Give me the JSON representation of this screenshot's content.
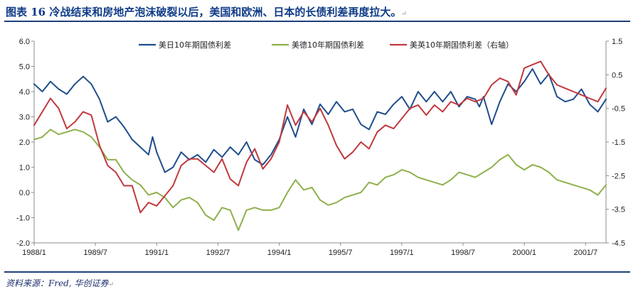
{
  "title": "图表 16 冷战结束和房地产泡沫破裂以后，美国和欧洲、日本的长债利差再度拉大。",
  "source": "资料来源：Fred, 华创证券",
  "chart_data": {
    "type": "line",
    "title": "图表 16 冷战结束和房地产泡沫破裂以后，美国和欧洲、日本的长债利差再度拉大。",
    "x_tick_labels": [
      "1988/1",
      "1989/7",
      "1991/1",
      "1992/7",
      "1994/1",
      "1995/7",
      "1997/1",
      "1998/7",
      "2000/1",
      "2001/7"
    ],
    "y_left": {
      "min": -2.0,
      "max": 6.0,
      "ticks": [
        "-2.0",
        "-1.0",
        "0.0",
        "1.0",
        "2.0",
        "3.0",
        "4.0",
        "5.0",
        "6.0"
      ]
    },
    "y_right": {
      "min": -4.5,
      "max": 1.5,
      "ticks": [
        "-4.5",
        "-3.5",
        "-2.5",
        "-1.5",
        "-0.5",
        "0.5",
        "1.5"
      ]
    },
    "grid": false,
    "legend_position": "top",
    "series": [
      {
        "name": "美日10年期国债利差",
        "axis": "left",
        "color": "#1f4e8c",
        "points": [
          [
            1988.0,
            4.3
          ],
          [
            1988.2,
            4.0
          ],
          [
            1988.4,
            4.4
          ],
          [
            1988.6,
            4.1
          ],
          [
            1988.8,
            3.9
          ],
          [
            1989.0,
            4.3
          ],
          [
            1989.2,
            4.6
          ],
          [
            1989.4,
            4.3
          ],
          [
            1989.6,
            3.7
          ],
          [
            1989.8,
            2.8
          ],
          [
            1990.0,
            3.0
          ],
          [
            1990.2,
            2.6
          ],
          [
            1990.4,
            2.1
          ],
          [
            1990.6,
            1.8
          ],
          [
            1990.8,
            1.5
          ],
          [
            1990.9,
            2.2
          ],
          [
            1991.0,
            1.6
          ],
          [
            1991.2,
            0.8
          ],
          [
            1991.4,
            1.0
          ],
          [
            1991.6,
            1.6
          ],
          [
            1991.8,
            1.3
          ],
          [
            1992.0,
            1.5
          ],
          [
            1992.2,
            1.2
          ],
          [
            1992.4,
            1.7
          ],
          [
            1992.6,
            1.4
          ],
          [
            1992.8,
            1.8
          ],
          [
            1993.0,
            1.5
          ],
          [
            1993.2,
            2.0
          ],
          [
            1993.4,
            1.3
          ],
          [
            1993.6,
            1.1
          ],
          [
            1993.8,
            1.5
          ],
          [
            1994.0,
            2.1
          ],
          [
            1994.2,
            3.0
          ],
          [
            1994.4,
            2.2
          ],
          [
            1994.6,
            3.3
          ],
          [
            1994.8,
            2.7
          ],
          [
            1995.0,
            3.5
          ],
          [
            1995.2,
            3.1
          ],
          [
            1995.4,
            3.6
          ],
          [
            1995.6,
            3.2
          ],
          [
            1995.8,
            3.3
          ],
          [
            1996.0,
            2.7
          ],
          [
            1996.2,
            2.5
          ],
          [
            1996.4,
            3.2
          ],
          [
            1996.6,
            3.1
          ],
          [
            1996.8,
            3.5
          ],
          [
            1997.0,
            3.8
          ],
          [
            1997.2,
            3.3
          ],
          [
            1997.4,
            4.0
          ],
          [
            1997.6,
            3.6
          ],
          [
            1997.8,
            4.0
          ],
          [
            1998.0,
            3.6
          ],
          [
            1998.2,
            4.0
          ],
          [
            1998.4,
            3.4
          ],
          [
            1998.6,
            3.8
          ],
          [
            1998.8,
            3.7
          ],
          [
            1998.9,
            3.4
          ],
          [
            1999.0,
            3.8
          ],
          [
            1999.2,
            2.7
          ],
          [
            1999.4,
            3.6
          ],
          [
            1999.6,
            4.3
          ],
          [
            1999.8,
            4.0
          ],
          [
            2000.0,
            4.4
          ],
          [
            2000.2,
            4.9
          ],
          [
            2000.4,
            4.3
          ],
          [
            2000.6,
            4.7
          ],
          [
            2000.8,
            3.8
          ],
          [
            2001.0,
            3.6
          ],
          [
            2001.2,
            3.7
          ],
          [
            2001.4,
            4.1
          ],
          [
            2001.6,
            3.5
          ],
          [
            2001.8,
            3.2
          ],
          [
            2002.0,
            3.7
          ]
        ]
      },
      {
        "name": "美德10年期国债利差",
        "axis": "left",
        "color": "#8fb04c",
        "points": [
          [
            1988.0,
            2.1
          ],
          [
            1988.2,
            2.2
          ],
          [
            1988.4,
            2.5
          ],
          [
            1988.6,
            2.3
          ],
          [
            1988.8,
            2.4
          ],
          [
            1989.0,
            2.5
          ],
          [
            1989.2,
            2.4
          ],
          [
            1989.4,
            2.2
          ],
          [
            1989.6,
            1.8
          ],
          [
            1989.8,
            1.3
          ],
          [
            1990.0,
            1.3
          ],
          [
            1990.2,
            0.8
          ],
          [
            1990.4,
            0.5
          ],
          [
            1990.6,
            0.3
          ],
          [
            1990.8,
            -0.1
          ],
          [
            1991.0,
            0.0
          ],
          [
            1991.2,
            -0.2
          ],
          [
            1991.4,
            -0.6
          ],
          [
            1991.6,
            -0.3
          ],
          [
            1991.8,
            -0.2
          ],
          [
            1992.0,
            -0.4
          ],
          [
            1992.2,
            -0.9
          ],
          [
            1992.4,
            -1.1
          ],
          [
            1992.6,
            -0.6
          ],
          [
            1992.8,
            -0.7
          ],
          [
            1993.0,
            -1.5
          ],
          [
            1993.2,
            -0.7
          ],
          [
            1993.4,
            -0.6
          ],
          [
            1993.6,
            -0.7
          ],
          [
            1993.8,
            -0.7
          ],
          [
            1994.0,
            -0.6
          ],
          [
            1994.2,
            0.0
          ],
          [
            1994.4,
            0.5
          ],
          [
            1994.6,
            0.1
          ],
          [
            1994.8,
            0.2
          ],
          [
            1995.0,
            -0.3
          ],
          [
            1995.2,
            -0.5
          ],
          [
            1995.4,
            -0.4
          ],
          [
            1995.6,
            -0.2
          ],
          [
            1995.8,
            -0.1
          ],
          [
            1996.0,
            0.0
          ],
          [
            1996.2,
            0.4
          ],
          [
            1996.4,
            0.3
          ],
          [
            1996.6,
            0.6
          ],
          [
            1996.8,
            0.7
          ],
          [
            1997.0,
            0.9
          ],
          [
            1997.2,
            0.8
          ],
          [
            1997.4,
            0.6
          ],
          [
            1997.6,
            0.5
          ],
          [
            1997.8,
            0.4
          ],
          [
            1998.0,
            0.3
          ],
          [
            1998.2,
            0.5
          ],
          [
            1998.4,
            0.8
          ],
          [
            1998.6,
            0.7
          ],
          [
            1998.8,
            0.6
          ],
          [
            1999.0,
            0.8
          ],
          [
            1999.2,
            1.0
          ],
          [
            1999.4,
            1.3
          ],
          [
            1999.6,
            1.5
          ],
          [
            1999.8,
            1.1
          ],
          [
            2000.0,
            0.9
          ],
          [
            2000.2,
            1.1
          ],
          [
            2000.4,
            1.0
          ],
          [
            2000.6,
            0.8
          ],
          [
            2000.8,
            0.5
          ],
          [
            2001.0,
            0.4
          ],
          [
            2001.2,
            0.3
          ],
          [
            2001.4,
            0.2
          ],
          [
            2001.6,
            0.1
          ],
          [
            2001.8,
            -0.1
          ],
          [
            2002.0,
            0.3
          ]
        ]
      },
      {
        "name": "美英10年期国债利差（右轴）",
        "axis": "right",
        "color": "#c0393e",
        "points": [
          [
            1988.0,
            -1.0
          ],
          [
            1988.2,
            -0.6
          ],
          [
            1988.4,
            -0.2
          ],
          [
            1988.6,
            -0.5
          ],
          [
            1988.8,
            -1.1
          ],
          [
            1989.0,
            -0.9
          ],
          [
            1989.2,
            -0.6
          ],
          [
            1989.4,
            -0.7
          ],
          [
            1989.6,
            -1.6
          ],
          [
            1989.8,
            -2.2
          ],
          [
            1990.0,
            -2.4
          ],
          [
            1990.2,
            -2.8
          ],
          [
            1990.4,
            -2.8
          ],
          [
            1990.6,
            -3.6
          ],
          [
            1990.8,
            -3.3
          ],
          [
            1991.0,
            -3.4
          ],
          [
            1991.2,
            -3.1
          ],
          [
            1991.4,
            -2.8
          ],
          [
            1991.6,
            -2.2
          ],
          [
            1991.8,
            -2.0
          ],
          [
            1992.0,
            -2.0
          ],
          [
            1992.2,
            -2.2
          ],
          [
            1992.4,
            -2.4
          ],
          [
            1992.6,
            -2.0
          ],
          [
            1992.8,
            -2.6
          ],
          [
            1993.0,
            -2.8
          ],
          [
            1993.2,
            -2.1
          ],
          [
            1993.4,
            -1.7
          ],
          [
            1993.6,
            -2.3
          ],
          [
            1993.8,
            -2.0
          ],
          [
            1994.0,
            -1.5
          ],
          [
            1994.2,
            -0.4
          ],
          [
            1994.4,
            -1.0
          ],
          [
            1994.6,
            -0.6
          ],
          [
            1994.8,
            -0.9
          ],
          [
            1995.0,
            -0.5
          ],
          [
            1995.2,
            -1.0
          ],
          [
            1995.4,
            -1.6
          ],
          [
            1995.6,
            -2.0
          ],
          [
            1995.8,
            -1.8
          ],
          [
            1996.0,
            -1.5
          ],
          [
            1996.2,
            -1.7
          ],
          [
            1996.4,
            -1.2
          ],
          [
            1996.6,
            -1.0
          ],
          [
            1996.8,
            -1.1
          ],
          [
            1997.0,
            -0.8
          ],
          [
            1997.2,
            -0.5
          ],
          [
            1997.4,
            -0.4
          ],
          [
            1997.6,
            -0.7
          ],
          [
            1997.8,
            -0.4
          ],
          [
            1998.0,
            -0.6
          ],
          [
            1998.2,
            -0.3
          ],
          [
            1998.4,
            -0.4
          ],
          [
            1998.6,
            -0.2
          ],
          [
            1998.8,
            -0.3
          ],
          [
            1999.0,
            -0.2
          ],
          [
            1999.2,
            0.2
          ],
          [
            1999.4,
            0.4
          ],
          [
            1999.6,
            0.3
          ],
          [
            1999.8,
            -0.1
          ],
          [
            2000.0,
            0.7
          ],
          [
            2000.2,
            0.8
          ],
          [
            2000.4,
            0.9
          ],
          [
            2000.6,
            0.5
          ],
          [
            2000.8,
            0.2
          ],
          [
            2001.0,
            0.1
          ],
          [
            2001.2,
            0.0
          ],
          [
            2001.4,
            -0.1
          ],
          [
            2001.6,
            -0.2
          ],
          [
            2001.8,
            -0.3
          ],
          [
            2002.0,
            0.1
          ]
        ]
      }
    ]
  }
}
